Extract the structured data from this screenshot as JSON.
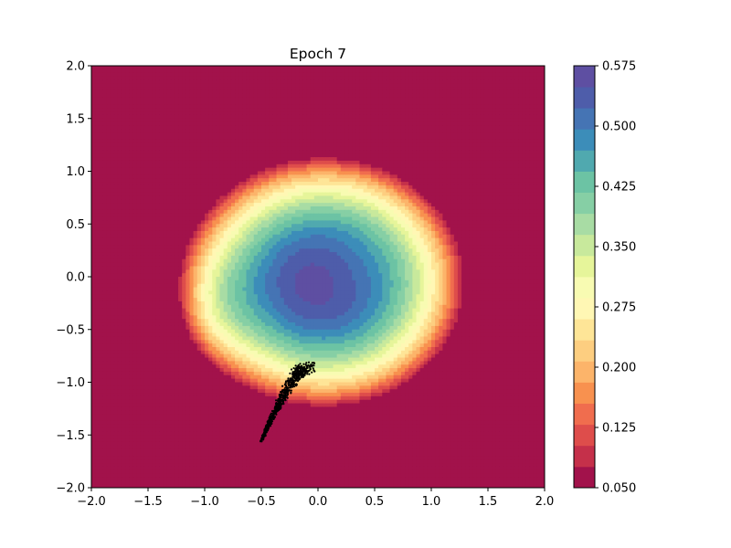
{
  "chart_data": {
    "type": "contourf",
    "title": "Epoch 7",
    "xlabel": "",
    "ylabel": "",
    "xlim": [
      -2.0,
      2.0
    ],
    "ylim": [
      -2.0,
      2.0
    ],
    "x_ticks": [
      "−2.0",
      "−1.5",
      "−1.0",
      "−0.5",
      "0.0",
      "0.5",
      "1.0",
      "1.5",
      "2.0"
    ],
    "y_ticks": [
      "−2.0",
      "−1.5",
      "−1.0",
      "−0.5",
      "0.0",
      "0.5",
      "1.0",
      "1.5",
      "2.0"
    ],
    "colorbar": {
      "colormap": "Spectral",
      "vmin": 0.05,
      "vmax": 0.575,
      "levels": 21,
      "tick_values": [
        0.05,
        0.125,
        0.2,
        0.275,
        0.35,
        0.425,
        0.5,
        0.575
      ],
      "tick_labels": [
        "0.050",
        "0.125",
        "0.200",
        "0.275",
        "0.350",
        "0.425",
        "0.500",
        "0.575"
      ],
      "colors": [
        "#a2124b",
        "#c5304a",
        "#de4d4b",
        "#f06d4e",
        "#f8914f",
        "#fcb46a",
        "#fdce80",
        "#fee597",
        "#fff7b4",
        "#f8fbb2",
        "#e6f59a",
        "#c8e99c",
        "#a8dca4",
        "#86cfa5",
        "#6cc3a4",
        "#50a9af",
        "#3c8db9",
        "#4574b4",
        "#4e5daa",
        "#5e4fa2"
      ]
    },
    "scatter": {
      "color": "#000000",
      "description_anchor": [
        -0.1,
        -0.85
      ],
      "x_range": [
        -0.6,
        -0.05
      ],
      "y_range": [
        -1.58,
        -0.84
      ]
    },
    "grid": false
  }
}
